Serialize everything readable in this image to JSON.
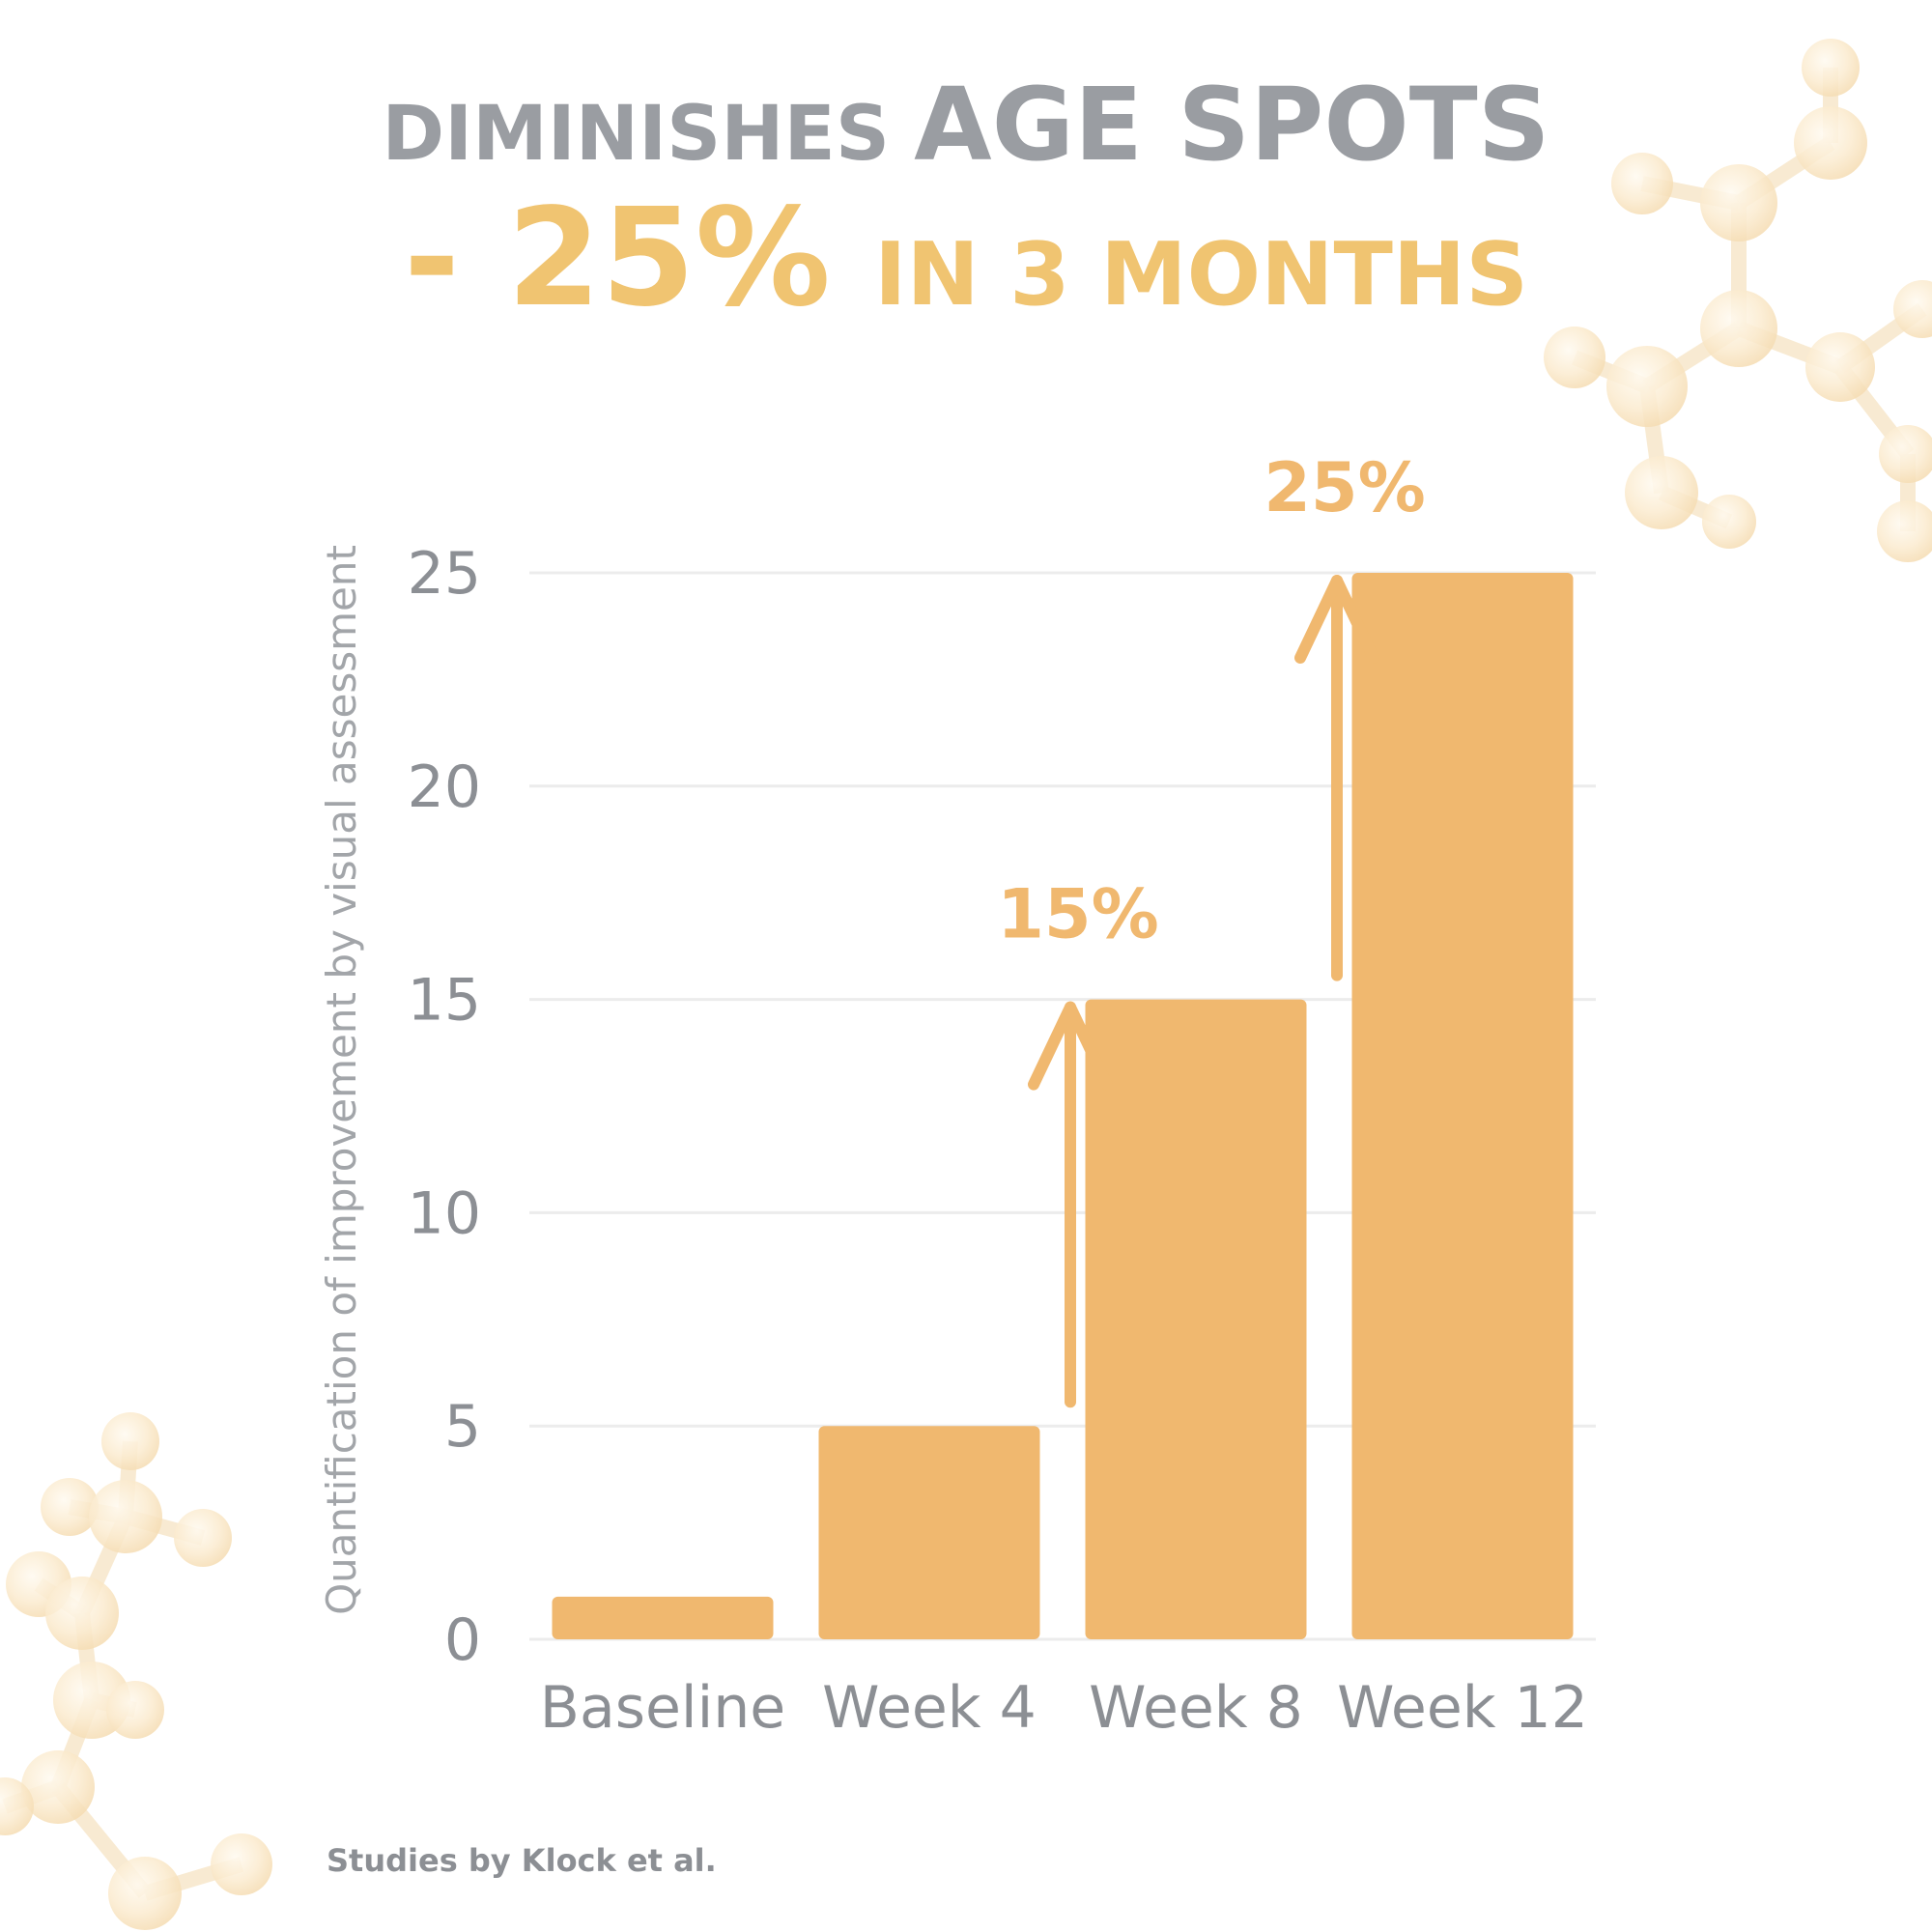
{
  "headline": {
    "line1_small": "DIMINISHES",
    "line1_large": "AGE SPOTS",
    "line2_large": "- 25%",
    "line2_small": "IN 3 MONTHS"
  },
  "colors": {
    "accent": "#f0b86f",
    "headline_accent": "#f0c471",
    "text_gray": "#9a9da2",
    "grid": "#ececec"
  },
  "chart_data": {
    "type": "bar",
    "categories": [
      "Baseline",
      "Week 4",
      "Week 8",
      "Week 12"
    ],
    "values": [
      1,
      5,
      15,
      25
    ],
    "xlabel": "",
    "ylabel": "Quantification of improvement by visual assessment",
    "ylim": [
      0,
      25
    ],
    "yticks": [
      0,
      5,
      10,
      15,
      20,
      25
    ],
    "grid": true,
    "legend": "none",
    "annotations": [
      {
        "text": "15%",
        "from_value": 5,
        "to_value": 15,
        "between": [
          "Week 4",
          "Week 8"
        ]
      },
      {
        "text": "25%",
        "from_value": 15,
        "to_value": 25,
        "between": [
          "Week 8",
          "Week 12"
        ]
      }
    ]
  },
  "source": "Studies by Klock et al.",
  "decoration": "molecule-icon"
}
